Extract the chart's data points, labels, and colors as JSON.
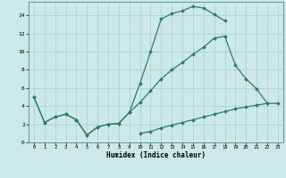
{
  "xlabel": "Humidex (Indice chaleur)",
  "background_color": "#cce8e8",
  "grid_color": "#aacfcf",
  "line_color": "#2e7b6e",
  "xlim": [
    -0.5,
    23.5
  ],
  "ylim": [
    0,
    15.5
  ],
  "xticks": [
    0,
    1,
    2,
    3,
    4,
    5,
    6,
    7,
    8,
    9,
    10,
    11,
    12,
    13,
    14,
    15,
    16,
    17,
    18,
    19,
    20,
    21,
    22,
    23
  ],
  "yticks": [
    0,
    2,
    4,
    6,
    8,
    10,
    12,
    14
  ],
  "line1_x": [
    0,
    1,
    2,
    3,
    4,
    5,
    6,
    7,
    8,
    9,
    10,
    11,
    12,
    13,
    14,
    15,
    16,
    17,
    18
  ],
  "line1_y": [
    5.0,
    2.2,
    2.8,
    3.1,
    2.5,
    0.8,
    1.7,
    2.0,
    2.1,
    3.3,
    6.5,
    10.0,
    13.6,
    14.2,
    14.5,
    15.0,
    14.8,
    14.1,
    13.4
  ],
  "line2_x": [
    0,
    1,
    2,
    3,
    4,
    5,
    6,
    7,
    8,
    9,
    10,
    11,
    12,
    13,
    14,
    15,
    16,
    17,
    18,
    19,
    20,
    21,
    22
  ],
  "line2_y": [
    5.0,
    2.2,
    2.8,
    3.1,
    2.5,
    0.8,
    1.7,
    2.0,
    2.1,
    3.3,
    4.4,
    5.7,
    7.0,
    8.0,
    8.8,
    9.7,
    10.5,
    11.5,
    11.7,
    8.5,
    7.0,
    5.9,
    4.3
  ],
  "line3_x": [
    10,
    11,
    12,
    13,
    14,
    15,
    16,
    17,
    18,
    19,
    20,
    21,
    22,
    23
  ],
  "line3_y": [
    1.0,
    1.2,
    1.6,
    1.9,
    2.2,
    2.5,
    2.8,
    3.1,
    3.4,
    3.7,
    3.9,
    4.1,
    4.3,
    4.3
  ]
}
